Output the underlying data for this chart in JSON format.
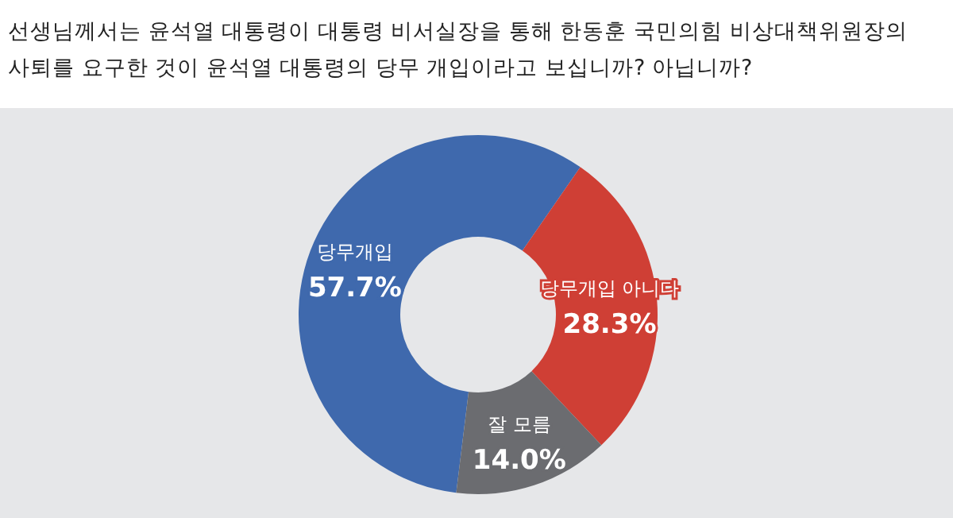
{
  "chart_data": {
    "type": "donut",
    "title": "선생님께서는 윤석열 대통령이 대통령 비서실장을 통해 한동훈 국민의힘 비상대책위원장의\n사퇴를 요구한 것이 윤석열 대통령의 당무 개입이라고 보십니까? 아닙니까?",
    "categories": [
      "당무개입",
      "당무개입 아니다",
      "잘 모름"
    ],
    "values": [
      57.7,
      28.3,
      14.0
    ],
    "colors": [
      "#3f69ad",
      "#cf3f35",
      "#6b6c70"
    ],
    "value_labels": [
      "57.7%",
      "28.3%",
      "14.0%"
    ]
  }
}
